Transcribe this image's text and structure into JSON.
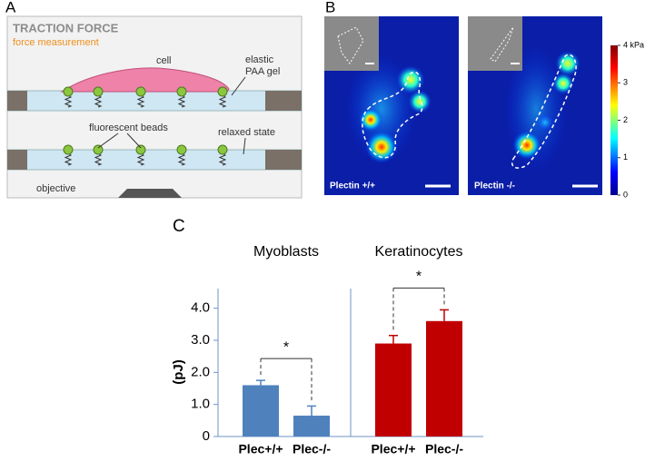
{
  "panel_a": {
    "label": "A",
    "title": "TRACTION FORCE",
    "subtitle": "force measurement",
    "cell": "cell",
    "gel_line1": "elastic",
    "gel_line2": "PAA gel",
    "beads": "fluorescent beads",
    "relaxed": "relaxed state",
    "objective": "objective"
  },
  "panel_b": {
    "label": "B",
    "images": [
      "Plectin +/+",
      "Plectin -/-"
    ],
    "colorbar_ticks": [
      0,
      1,
      2,
      3,
      {
        "value": 4,
        "label": "4 kPa"
      }
    ],
    "colorbar_lim": [
      0,
      4
    ]
  },
  "chart_data": {
    "type": "bar",
    "panel": "C",
    "ylabel": "(pJ)",
    "ylim": [
      0,
      4.5
    ],
    "yticks": [
      0,
      {
        "value": 1,
        "label": "1.0"
      },
      {
        "value": 2,
        "label": "2.0"
      },
      {
        "value": 3,
        "label": "3.0"
      },
      {
        "value": 4,
        "label": "4.0"
      }
    ],
    "groups": [
      {
        "name": "Myoblasts",
        "color": "#4f81bd",
        "categories": [
          "Plec+/+",
          "Plec-/-"
        ],
        "values": [
          1.6,
          0.65
        ],
        "errors": [
          0.15,
          0.3
        ],
        "significance": "*"
      },
      {
        "name": "Keratinocytes",
        "color": "#c00000",
        "categories": [
          "Plec+/+",
          "Plec-/-"
        ],
        "values": [
          2.9,
          3.6
        ],
        "errors": [
          0.25,
          0.35
        ],
        "significance": "*"
      }
    ]
  }
}
